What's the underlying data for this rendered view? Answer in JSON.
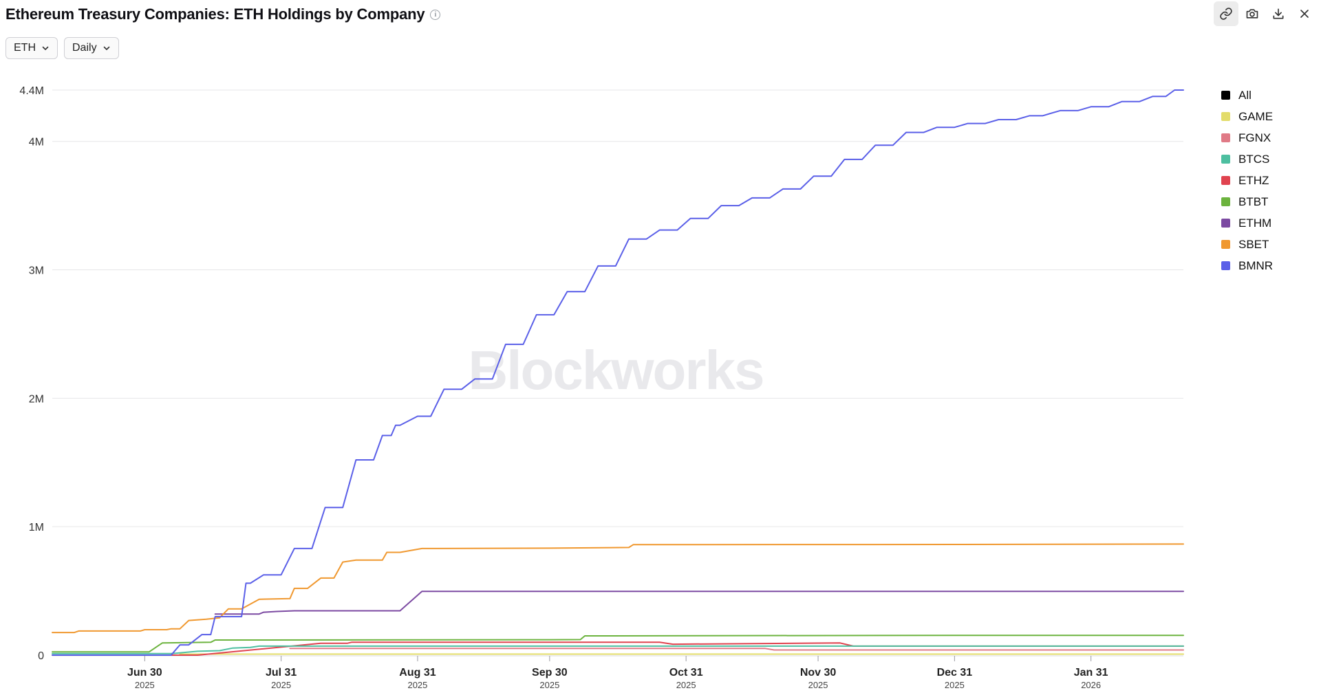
{
  "header": {
    "title": "Ethereum Treasury Companies: ETH Holdings by Company",
    "info_icon": "info-icon"
  },
  "toolbar": {
    "icons": [
      "link-icon",
      "camera-icon",
      "download-icon",
      "close-icon"
    ]
  },
  "controls": {
    "asset_select": "ETH",
    "interval_select": "Daily"
  },
  "watermark": "Blockworks",
  "chart_data": {
    "type": "line",
    "title": "Ethereum Treasury Companies: ETH Holdings by Company",
    "xlabel": "",
    "ylabel": "",
    "ylim": [
      0,
      4400000
    ],
    "xlim": [
      "2025-06-09",
      "2026-02-21"
    ],
    "y_ticks": [
      {
        "value": 0,
        "label": "0"
      },
      {
        "value": 1000000,
        "label": "1M"
      },
      {
        "value": 2000000,
        "label": "2M"
      },
      {
        "value": 3000000,
        "label": "3M"
      },
      {
        "value": 4000000,
        "label": "4M"
      },
      {
        "value": 4400000,
        "label": "4.4M"
      }
    ],
    "x_ticks": [
      {
        "date": "2025-06-30",
        "label": "Jun 30",
        "year": "2025"
      },
      {
        "date": "2025-07-31",
        "label": "Jul 31",
        "year": "2025"
      },
      {
        "date": "2025-08-31",
        "label": "Aug 31",
        "year": "2025"
      },
      {
        "date": "2025-09-30",
        "label": "Sep 30",
        "year": "2025"
      },
      {
        "date": "2025-10-31",
        "label": "Oct 31",
        "year": "2025"
      },
      {
        "date": "2025-11-30",
        "label": "Nov 30",
        "year": "2025"
      },
      {
        "date": "2025-12-31",
        "label": "Dec 31",
        "year": "2025"
      },
      {
        "date": "2026-01-31",
        "label": "Jan 31",
        "year": "2026"
      }
    ],
    "grid": true,
    "legend_position": "right",
    "legend": [
      {
        "name": "All",
        "color": "#000000"
      },
      {
        "name": "GAME",
        "color": "#e3dc6a"
      },
      {
        "name": "FGNX",
        "color": "#e07a86"
      },
      {
        "name": "BTCS",
        "color": "#4dbfa0"
      },
      {
        "name": "ETHZ",
        "color": "#e0434f"
      },
      {
        "name": "BTBT",
        "color": "#6cb33e"
      },
      {
        "name": "ETHM",
        "color": "#7c4aa2"
      },
      {
        "name": "SBET",
        "color": "#f0982f"
      },
      {
        "name": "BMNR",
        "color": "#5a5fe8"
      }
    ],
    "series": [
      {
        "name": "BMNR",
        "color": "#5a5fe8",
        "points": [
          [
            "2025-06-09",
            0
          ],
          [
            "2025-07-06",
            0
          ],
          [
            "2025-07-08",
            80000
          ],
          [
            "2025-07-10",
            80000
          ],
          [
            "2025-07-13",
            160000
          ],
          [
            "2025-07-15",
            160000
          ],
          [
            "2025-07-16",
            300000
          ],
          [
            "2025-07-22",
            300000
          ],
          [
            "2025-07-23",
            560000
          ],
          [
            "2025-07-24",
            560000
          ],
          [
            "2025-07-27",
            625000
          ],
          [
            "2025-07-31",
            625000
          ],
          [
            "2025-08-03",
            830000
          ],
          [
            "2025-08-07",
            830000
          ],
          [
            "2025-08-10",
            1150000
          ],
          [
            "2025-08-14",
            1150000
          ],
          [
            "2025-08-17",
            1520000
          ],
          [
            "2025-08-21",
            1520000
          ],
          [
            "2025-08-23",
            1710000
          ],
          [
            "2025-08-25",
            1710000
          ],
          [
            "2025-08-26",
            1790000
          ],
          [
            "2025-08-27",
            1790000
          ],
          [
            "2025-08-31",
            1860000
          ],
          [
            "2025-09-03",
            1860000
          ],
          [
            "2025-09-06",
            2070000
          ],
          [
            "2025-09-10",
            2070000
          ],
          [
            "2025-09-13",
            2150000
          ],
          [
            "2025-09-17",
            2150000
          ],
          [
            "2025-09-20",
            2420000
          ],
          [
            "2025-09-24",
            2420000
          ],
          [
            "2025-09-27",
            2650000
          ],
          [
            "2025-10-01",
            2650000
          ],
          [
            "2025-10-04",
            2830000
          ],
          [
            "2025-10-08",
            2830000
          ],
          [
            "2025-10-11",
            3030000
          ],
          [
            "2025-10-15",
            3030000
          ],
          [
            "2025-10-18",
            3240000
          ],
          [
            "2025-10-22",
            3240000
          ],
          [
            "2025-10-25",
            3310000
          ],
          [
            "2025-10-29",
            3310000
          ],
          [
            "2025-11-01",
            3400000
          ],
          [
            "2025-11-05",
            3400000
          ],
          [
            "2025-11-08",
            3500000
          ],
          [
            "2025-11-12",
            3500000
          ],
          [
            "2025-11-15",
            3560000
          ],
          [
            "2025-11-19",
            3560000
          ],
          [
            "2025-11-22",
            3630000
          ],
          [
            "2025-11-26",
            3630000
          ],
          [
            "2025-11-29",
            3730000
          ],
          [
            "2025-12-03",
            3730000
          ],
          [
            "2025-12-06",
            3860000
          ],
          [
            "2025-12-10",
            3860000
          ],
          [
            "2025-12-13",
            3970000
          ],
          [
            "2025-12-17",
            3970000
          ],
          [
            "2025-12-20",
            4070000
          ],
          [
            "2025-12-24",
            4070000
          ],
          [
            "2025-12-27",
            4110000
          ],
          [
            "2025-12-31",
            4110000
          ],
          [
            "2026-01-03",
            4140000
          ],
          [
            "2026-01-07",
            4140000
          ],
          [
            "2026-01-10",
            4170000
          ],
          [
            "2026-01-14",
            4170000
          ],
          [
            "2026-01-17",
            4200000
          ],
          [
            "2026-01-20",
            4200000
          ],
          [
            "2026-01-24",
            4240000
          ],
          [
            "2026-01-28",
            4240000
          ],
          [
            "2026-01-31",
            4270000
          ],
          [
            "2026-02-04",
            4270000
          ],
          [
            "2026-02-07",
            4310000
          ],
          [
            "2026-02-11",
            4310000
          ],
          [
            "2026-02-14",
            4350000
          ],
          [
            "2026-02-17",
            4350000
          ],
          [
            "2026-02-19",
            4400000
          ],
          [
            "2026-02-21",
            4400000
          ]
        ]
      },
      {
        "name": "SBET",
        "color": "#f0982f",
        "points": [
          [
            "2025-06-09",
            176000
          ],
          [
            "2025-06-14",
            176000
          ],
          [
            "2025-06-15",
            188000
          ],
          [
            "2025-06-29",
            188000
          ],
          [
            "2025-06-30",
            198000
          ],
          [
            "2025-07-05",
            198000
          ],
          [
            "2025-07-06",
            205000
          ],
          [
            "2025-07-08",
            205000
          ],
          [
            "2025-07-10",
            270000
          ],
          [
            "2025-07-14",
            280000
          ],
          [
            "2025-07-17",
            290000
          ],
          [
            "2025-07-19",
            360000
          ],
          [
            "2025-07-22",
            360000
          ],
          [
            "2025-07-26",
            435000
          ],
          [
            "2025-08-02",
            440000
          ],
          [
            "2025-08-03",
            520000
          ],
          [
            "2025-08-06",
            520000
          ],
          [
            "2025-08-09",
            600000
          ],
          [
            "2025-08-12",
            600000
          ],
          [
            "2025-08-14",
            725000
          ],
          [
            "2025-08-17",
            740000
          ],
          [
            "2025-08-23",
            740000
          ],
          [
            "2025-08-24",
            800000
          ],
          [
            "2025-08-27",
            800000
          ],
          [
            "2025-09-01",
            830000
          ],
          [
            "2025-09-30",
            833000
          ],
          [
            "2025-10-18",
            838000
          ],
          [
            "2025-10-19",
            860000
          ],
          [
            "2025-12-31",
            862000
          ],
          [
            "2026-02-21",
            865000
          ]
        ]
      },
      {
        "name": "ETHM",
        "color": "#7c4aa2",
        "points": [
          [
            "2025-07-16",
            320000
          ],
          [
            "2025-07-26",
            320000
          ],
          [
            "2025-07-27",
            334000
          ],
          [
            "2025-07-30",
            340000
          ],
          [
            "2025-08-03",
            345000
          ],
          [
            "2025-08-27",
            345000
          ],
          [
            "2025-09-01",
            496000
          ],
          [
            "2026-02-21",
            496000
          ]
        ]
      },
      {
        "name": "BTBT",
        "color": "#6cb33e",
        "points": [
          [
            "2025-06-09",
            25000
          ],
          [
            "2025-07-01",
            25000
          ],
          [
            "2025-07-04",
            95000
          ],
          [
            "2025-07-15",
            100000
          ],
          [
            "2025-07-16",
            118000
          ],
          [
            "2025-09-30",
            120000
          ],
          [
            "2025-10-07",
            121000
          ],
          [
            "2025-10-08",
            150000
          ],
          [
            "2025-12-31",
            154000
          ],
          [
            "2026-02-21",
            154000
          ]
        ]
      },
      {
        "name": "BTCS",
        "color": "#4dbfa0",
        "points": [
          [
            "2025-06-09",
            12000
          ],
          [
            "2025-07-06",
            12000
          ],
          [
            "2025-07-12",
            30000
          ],
          [
            "2025-07-17",
            35000
          ],
          [
            "2025-07-20",
            55000
          ],
          [
            "2025-07-24",
            60000
          ],
          [
            "2025-07-26",
            70000
          ],
          [
            "2026-02-21",
            70000
          ]
        ]
      },
      {
        "name": "ETHZ",
        "color": "#e0434f",
        "points": [
          [
            "2025-06-09",
            0
          ],
          [
            "2025-07-12",
            0
          ],
          [
            "2025-08-09",
            92000
          ],
          [
            "2025-08-15",
            92000
          ],
          [
            "2025-08-16",
            100000
          ],
          [
            "2025-10-25",
            100000
          ],
          [
            "2025-10-28",
            85000
          ],
          [
            "2025-12-05",
            95000
          ],
          [
            "2025-12-08",
            70000
          ],
          [
            "2026-02-21",
            70000
          ]
        ]
      },
      {
        "name": "FGNX",
        "color": "#e07a86",
        "points": [
          [
            "2025-08-02",
            52000
          ],
          [
            "2025-11-18",
            52000
          ],
          [
            "2025-11-20",
            40000
          ],
          [
            "2026-02-21",
            40000
          ]
        ]
      },
      {
        "name": "GAME",
        "color": "#e3dc6a",
        "points": [
          [
            "2025-07-08",
            8000
          ],
          [
            "2026-02-21",
            8000
          ]
        ]
      }
    ]
  }
}
